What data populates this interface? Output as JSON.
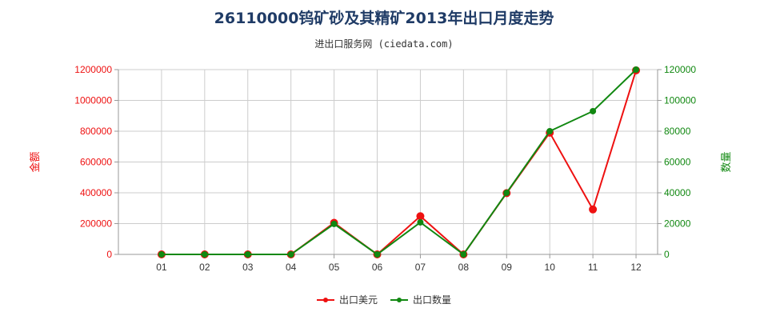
{
  "title": "26110000钨矿砂及其精矿2013年出口月度走势",
  "subtitle": "进出口服务网 (ciedata.com)",
  "colors": {
    "left_series": "#ee1111",
    "right_series": "#118811",
    "grid": "#cccccc",
    "axis": "#999999"
  },
  "chart_data": {
    "type": "line",
    "categories": [
      "01",
      "02",
      "03",
      "04",
      "05",
      "06",
      "07",
      "08",
      "09",
      "10",
      "11",
      "12"
    ],
    "left_axis": {
      "label": "金额",
      "ylim": [
        0,
        1200000
      ],
      "ticks": [
        "0",
        "200000",
        "400000",
        "600000",
        "800000",
        "1000000",
        "1200000"
      ]
    },
    "right_axis": {
      "label": "数量",
      "ylim": [
        0,
        120000
      ],
      "ticks": [
        "0",
        "20000",
        "40000",
        "60000",
        "80000",
        "100000",
        "120000"
      ]
    },
    "series": [
      {
        "name": "出口美元",
        "axis": "left",
        "values": [
          0,
          0,
          0,
          0,
          205000,
          0,
          248000,
          0,
          398000,
          790000,
          292000,
          1195000
        ]
      },
      {
        "name": "出口数量",
        "axis": "right",
        "values": [
          0,
          0,
          0,
          0,
          19800,
          0,
          20800,
          0,
          40000,
          80000,
          93000,
          120000
        ]
      }
    ],
    "grid": true,
    "legend_position": "bottom"
  }
}
